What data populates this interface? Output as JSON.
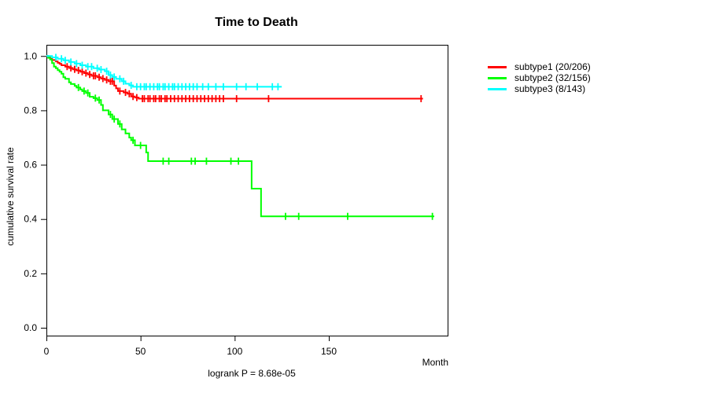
{
  "chart_data": {
    "type": "line",
    "chart_kind": "kaplan-meier-survival",
    "title": "Time to Death",
    "xlabel": "Month",
    "ylabel": "cumulative survival rate",
    "footnote": "logrank P = 8.68e-05",
    "grid": false,
    "legend_position": "right-outside",
    "xlim": [
      0,
      213
    ],
    "ylim": [
      0,
      1.04
    ],
    "axis_color": "#000000",
    "xticks": [
      {
        "v": 0,
        "label": "0"
      },
      {
        "v": 50,
        "label": "50"
      },
      {
        "v": 100,
        "label": "100"
      },
      {
        "v": 150,
        "label": "150"
      }
    ],
    "yticks": [
      {
        "v": 0.0,
        "label": "0.0"
      },
      {
        "v": 0.2,
        "label": "0.2"
      },
      {
        "v": 0.4,
        "label": "0.4"
      },
      {
        "v": 0.6,
        "label": "0.6"
      },
      {
        "v": 0.8,
        "label": "0.8"
      },
      {
        "v": 1.0,
        "label": "1.0"
      }
    ],
    "series": [
      {
        "name": "subtype1",
        "label": "subtype1 (20/206)",
        "color": "#FF0000",
        "events": 20,
        "n": 206,
        "final_survival": 0.843,
        "end_month": 200,
        "steps": [
          [
            0,
            1.0
          ],
          [
            1,
            0.995
          ],
          [
            2,
            0.99
          ],
          [
            3,
            0.985
          ],
          [
            5,
            0.98
          ],
          [
            6,
            0.975
          ],
          [
            7,
            0.971
          ],
          [
            8,
            0.966
          ],
          [
            10,
            0.961
          ],
          [
            12,
            0.956
          ],
          [
            14,
            0.951
          ],
          [
            16,
            0.947
          ],
          [
            18,
            0.942
          ],
          [
            20,
            0.937
          ],
          [
            22,
            0.932
          ],
          [
            24,
            0.927
          ],
          [
            27,
            0.922
          ],
          [
            29,
            0.917
          ],
          [
            31,
            0.912
          ],
          [
            33,
            0.907
          ],
          [
            36,
            0.891
          ],
          [
            37,
            0.881
          ],
          [
            38,
            0.871
          ],
          [
            41,
            0.866
          ],
          [
            43,
            0.861
          ],
          [
            45,
            0.851
          ],
          [
            47,
            0.847
          ],
          [
            49,
            0.843
          ]
        ],
        "censors": [
          11,
          13,
          15,
          17,
          19,
          21,
          23,
          25,
          26,
          28,
          30,
          32,
          34,
          35,
          39,
          42,
          44,
          46,
          48,
          51,
          52,
          54,
          55,
          57,
          58,
          60,
          61,
          63,
          64,
          66,
          68,
          70,
          72,
          74,
          76,
          78,
          80,
          82,
          84,
          86,
          88,
          90,
          92,
          94,
          101,
          118,
          199
        ]
      },
      {
        "name": "subtype2",
        "label": "subtype2 (32/156)",
        "color": "#00FF00",
        "events": 32,
        "n": 156,
        "final_survival": 0.41,
        "end_month": 206,
        "steps": [
          [
            0,
            1.0
          ],
          [
            1,
            0.993
          ],
          [
            2,
            0.987
          ],
          [
            3,
            0.974
          ],
          [
            4,
            0.961
          ],
          [
            5,
            0.955
          ],
          [
            6,
            0.948
          ],
          [
            7,
            0.942
          ],
          [
            8,
            0.935
          ],
          [
            9,
            0.922
          ],
          [
            10,
            0.916
          ],
          [
            12,
            0.903
          ],
          [
            13,
            0.897
          ],
          [
            15,
            0.89
          ],
          [
            16,
            0.884
          ],
          [
            18,
            0.877
          ],
          [
            19,
            0.871
          ],
          [
            21,
            0.864
          ],
          [
            23,
            0.85
          ],
          [
            25,
            0.845
          ],
          [
            27,
            0.838
          ],
          [
            29,
            0.82
          ],
          [
            30,
            0.8
          ],
          [
            33,
            0.785
          ],
          [
            35,
            0.768
          ],
          [
            38,
            0.75
          ],
          [
            40,
            0.73
          ],
          [
            42,
            0.715
          ],
          [
            44,
            0.7
          ],
          [
            45,
            0.69
          ],
          [
            47,
            0.671
          ],
          [
            53,
            0.645
          ],
          [
            54,
            0.613
          ],
          [
            109,
            0.512
          ],
          [
            114,
            0.41
          ]
        ],
        "censors": [
          17,
          20,
          22,
          26,
          28,
          34,
          36,
          39,
          46,
          50,
          62,
          65,
          77,
          79,
          85,
          98,
          102,
          127,
          134,
          160,
          205
        ]
      },
      {
        "name": "subtype3",
        "label": "subtype3 (8/143)",
        "color": "#00FFFF",
        "events": 8,
        "n": 143,
        "final_survival": 0.887,
        "end_month": 125,
        "steps": [
          [
            0,
            1.0
          ],
          [
            3,
            0.995
          ],
          [
            6,
            0.99
          ],
          [
            9,
            0.984
          ],
          [
            12,
            0.978
          ],
          [
            15,
            0.972
          ],
          [
            18,
            0.966
          ],
          [
            21,
            0.961
          ],
          [
            25,
            0.955
          ],
          [
            28,
            0.95
          ],
          [
            31,
            0.944
          ],
          [
            33,
            0.93
          ],
          [
            35,
            0.923
          ],
          [
            37,
            0.916
          ],
          [
            40,
            0.907
          ],
          [
            42,
            0.898
          ],
          [
            44,
            0.892
          ],
          [
            46,
            0.887
          ]
        ],
        "censors": [
          5,
          8,
          10,
          13,
          16,
          19,
          22,
          24,
          27,
          29,
          32,
          34,
          36,
          39,
          41,
          45,
          48,
          50,
          52,
          53,
          55,
          57,
          59,
          60,
          62,
          63,
          65,
          67,
          68,
          70,
          72,
          74,
          76,
          78,
          80,
          83,
          86,
          90,
          94,
          101,
          106,
          112,
          120,
          123
        ]
      }
    ]
  }
}
